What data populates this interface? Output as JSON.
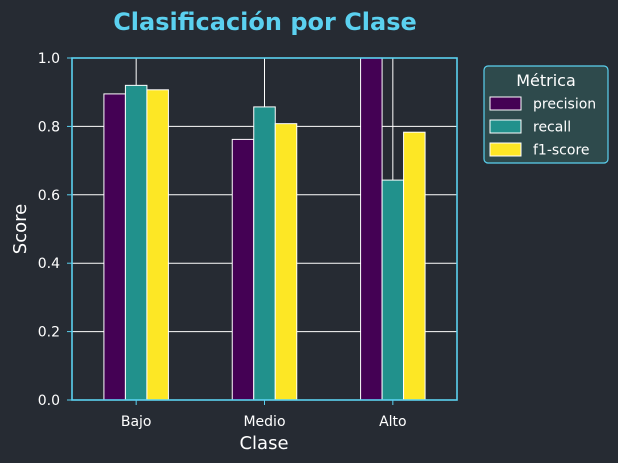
{
  "chart_data": {
    "type": "bar",
    "title": "Clasificación por Clase",
    "xlabel": "Clase",
    "ylabel": "Score",
    "categories": [
      "Bajo",
      "Medio",
      "Alto"
    ],
    "series": [
      {
        "name": "precision",
        "values": [
          0.895,
          0.762,
          1.0
        ],
        "color": "#440154"
      },
      {
        "name": "recall",
        "values": [
          0.92,
          0.857,
          0.643
        ],
        "color": "#21918c"
      },
      {
        "name": "f1-score",
        "values": [
          0.907,
          0.808,
          0.783
        ],
        "color": "#fde725"
      }
    ],
    "ylim": [
      0,
      1.0
    ],
    "yticks": [
      "0.0",
      "0.2",
      "0.4",
      "0.6",
      "0.8",
      "1.0"
    ],
    "legend": {
      "title": "Métrica",
      "placement": "outside-top-right"
    },
    "grid": true,
    "colors": {
      "background": "#262b33",
      "title": "#5bd1f0",
      "frame": "#5bd1f0",
      "grid": "#ffffff",
      "text": "#ffffff",
      "legend_bg": "#2e4a4c",
      "legend_border": "#5bd1f0"
    }
  }
}
